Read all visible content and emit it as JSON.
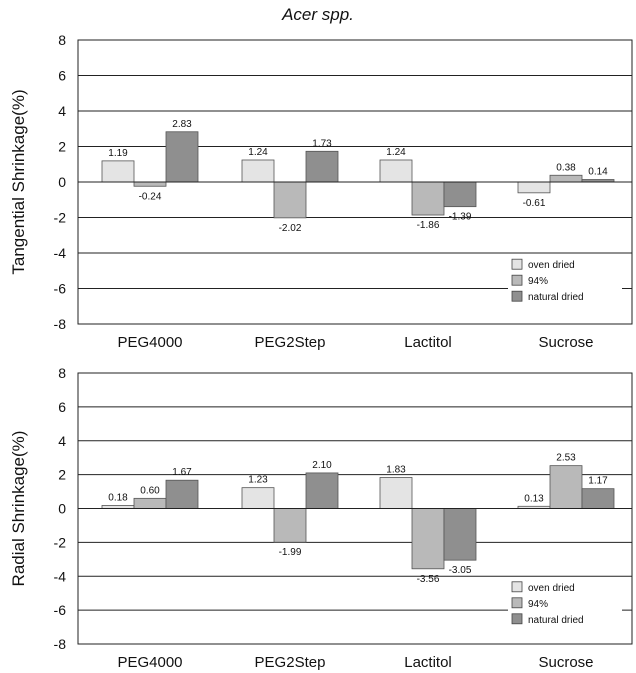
{
  "figure_title": "Acer spp.",
  "chart_data": [
    {
      "type": "bar",
      "ylabel": "Tangential Shrinkage(%)",
      "categories": [
        "PEG4000",
        "PEG2Step",
        "Lactitol",
        "Sucrose"
      ],
      "ylim": [
        -8,
        8
      ],
      "yticks": [
        -8,
        -6,
        -4,
        -2,
        0,
        2,
        4,
        6,
        8
      ],
      "grid": true,
      "legend_position": "bottom-right",
      "series": [
        {
          "name": "oven dried",
          "color": "#e4e4e4",
          "values": [
            1.19,
            1.24,
            1.24,
            -0.61
          ]
        },
        {
          "name": "94%",
          "color": "#b9b9b9",
          "values": [
            -0.24,
            -2.02,
            -1.86,
            0.38
          ]
        },
        {
          "name": "natural dried",
          "color": "#8f8f8f",
          "values": [
            2.83,
            1.73,
            -1.39,
            0.14
          ]
        }
      ],
      "data_labels": [
        [
          "1.19",
          "1.24",
          "1.24",
          "-0.61"
        ],
        [
          "-0.24",
          "-2.02",
          "-1.86",
          "0.38"
        ],
        [
          "2.83",
          "1.73",
          "-1.39",
          "0.14"
        ]
      ]
    },
    {
      "type": "bar",
      "ylabel": "Radial Shrinkage(%)",
      "categories": [
        "PEG4000",
        "PEG2Step",
        "Lactitol",
        "Sucrose"
      ],
      "ylim": [
        -8,
        8
      ],
      "yticks": [
        -8,
        -6,
        -4,
        -2,
        0,
        2,
        4,
        6,
        8
      ],
      "grid": true,
      "legend_position": "bottom-right",
      "series": [
        {
          "name": "oven dried",
          "color": "#e4e4e4",
          "values": [
            0.18,
            1.23,
            1.83,
            0.13
          ]
        },
        {
          "name": "94%",
          "color": "#b9b9b9",
          "values": [
            0.6,
            -1.99,
            -3.56,
            2.53
          ]
        },
        {
          "name": "natural dried",
          "color": "#8f8f8f",
          "values": [
            1.67,
            2.1,
            -3.05,
            1.17
          ]
        }
      ],
      "data_labels": [
        [
          "0.18",
          "1.23",
          "1.83",
          "0.13"
        ],
        [
          "0.60",
          "-1.99",
          "-3.56",
          "2.53"
        ],
        [
          "1.67",
          "2.10",
          "-3.05",
          "1.17"
        ]
      ]
    }
  ]
}
